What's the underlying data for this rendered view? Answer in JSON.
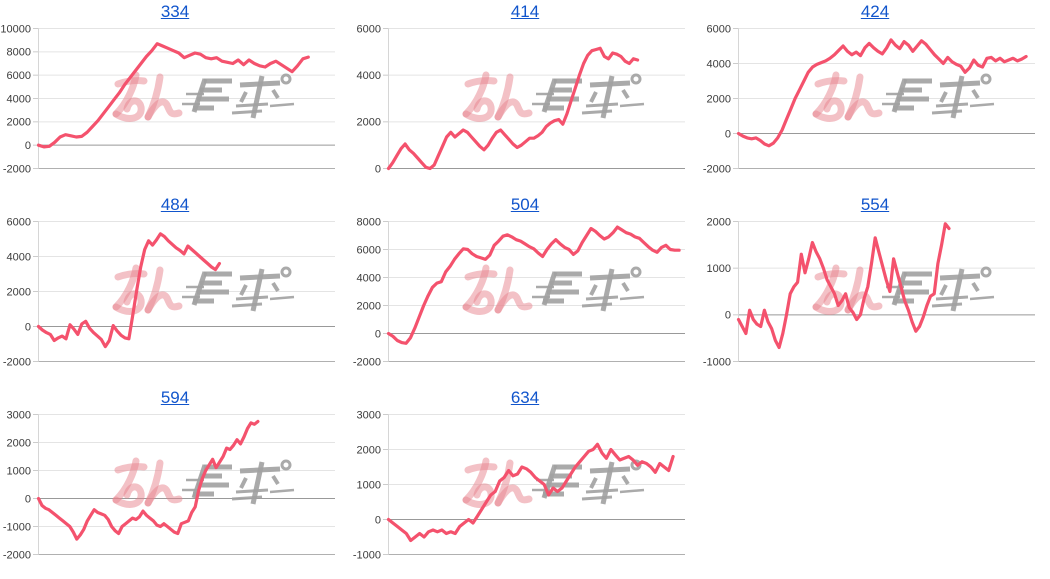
{
  "page": {
    "background": "#ffffff",
    "description_watermark": "minrepo-logo"
  },
  "style": {
    "line_color": "#f4526d",
    "grid_color": "#e4e4e4",
    "zero_line_color": "#999999",
    "baseline_color": "#b0b0b0",
    "axis_line_color": "#d6d6d6",
    "tick_stub_color": "#cccccc",
    "tick_label_color": "#3c3c3c",
    "title_link_color": "#1155cc",
    "watermark_pink": "#e8838e",
    "watermark_gray": "#a1a1a1"
  },
  "chart_data": [
    {
      "type": "line",
      "title": "334",
      "ylim": [
        -2000,
        10000
      ],
      "yticks": [
        10000,
        8000,
        6000,
        4000,
        2000,
        0,
        -2000
      ],
      "x_end": 0.91,
      "grid": true,
      "legend": "none",
      "values": [
        0,
        -150,
        -100,
        250,
        700,
        900,
        800,
        700,
        750,
        1100,
        1600,
        2100,
        2700,
        3300,
        3900,
        4500,
        5200,
        5800,
        6400,
        7000,
        7600,
        8100,
        8700,
        8500,
        8300,
        8100,
        7900,
        7500,
        7700,
        7900,
        7800,
        7500,
        7400,
        7500,
        7200,
        7100,
        7000,
        7300,
        6900,
        7300,
        7000,
        6800,
        6700,
        7000,
        7200,
        6900,
        6600,
        6300,
        6800,
        7400,
        7550
      ]
    },
    {
      "type": "line",
      "title": "414",
      "ylim": [
        0,
        6000
      ],
      "yticks": [
        6000,
        4000,
        2000,
        0
      ],
      "x_end": 0.84,
      "grid": true,
      "legend": "none",
      "values": [
        0,
        250,
        550,
        850,
        1050,
        800,
        650,
        450,
        250,
        50,
        0,
        150,
        550,
        950,
        1350,
        1550,
        1350,
        1500,
        1650,
        1550,
        1350,
        1150,
        950,
        800,
        1000,
        1300,
        1550,
        1650,
        1450,
        1250,
        1050,
        900,
        1000,
        1150,
        1300,
        1300,
        1400,
        1550,
        1800,
        1950,
        2050,
        2100,
        1900,
        2350,
        2900,
        3450,
        4000,
        4500,
        4850,
        5050,
        5100,
        5150,
        4800,
        4700,
        4950,
        4900,
        4800,
        4600,
        4500,
        4700,
        4650
      ]
    },
    {
      "type": "line",
      "title": "424",
      "ylim": [
        -2000,
        6000
      ],
      "yticks": [
        6000,
        4000,
        2000,
        0,
        -2000
      ],
      "x_end": 0.97,
      "grid": true,
      "legend": "none",
      "values": [
        0,
        -150,
        -250,
        -300,
        -250,
        -400,
        -600,
        -700,
        -550,
        -250,
        200,
        800,
        1400,
        2000,
        2500,
        3000,
        3500,
        3800,
        3950,
        4050,
        4150,
        4300,
        4500,
        4750,
        5000,
        4700,
        4500,
        4650,
        4450,
        4900,
        5150,
        4900,
        4700,
        4550,
        4900,
        5350,
        5050,
        4850,
        5250,
        5050,
        4700,
        5000,
        5300,
        5100,
        4800,
        4500,
        4250,
        4000,
        4350,
        4100,
        3950,
        3850,
        3500,
        3750,
        4200,
        3900,
        3800,
        4300,
        4350,
        4150,
        4300,
        4100,
        4200,
        4300,
        4150,
        4250,
        4400
      ]
    },
    {
      "type": "line",
      "title": "484",
      "ylim": [
        -2000,
        6000
      ],
      "yticks": [
        6000,
        4000,
        2000,
        0,
        -2000
      ],
      "x_end": 0.61,
      "grid": true,
      "legend": "none",
      "values": [
        0,
        -200,
        -350,
        -450,
        -800,
        -650,
        -550,
        -700,
        100,
        -150,
        -450,
        150,
        300,
        -100,
        -350,
        -550,
        -750,
        -1150,
        -800,
        50,
        -250,
        -500,
        -650,
        -700,
        700,
        2100,
        3400,
        4400,
        4900,
        4650,
        4950,
        5300,
        5150,
        4900,
        4700,
        4500,
        4350,
        4150,
        4600,
        4400,
        4200,
        4000,
        3800,
        3600,
        3400,
        3250,
        3600
      ]
    },
    {
      "type": "line",
      "title": "504",
      "ylim": [
        -2000,
        8000
      ],
      "yticks": [
        8000,
        6000,
        4000,
        2000,
        0,
        -2000
      ],
      "x_end": 0.98,
      "grid": true,
      "legend": "none",
      "values": [
        0,
        -200,
        -500,
        -650,
        -700,
        -300,
        400,
        1200,
        2000,
        2700,
        3300,
        3600,
        3700,
        4400,
        4800,
        5300,
        5700,
        6050,
        6000,
        5700,
        5500,
        5400,
        5300,
        5600,
        6300,
        6600,
        6950,
        7050,
        6900,
        6700,
        6600,
        6400,
        6200,
        6050,
        5750,
        5500,
        6000,
        6400,
        6700,
        6400,
        6150,
        6000,
        5650,
        5900,
        6500,
        7000,
        7500,
        7300,
        7000,
        6750,
        6900,
        7200,
        7600,
        7400,
        7200,
        7100,
        6900,
        6800,
        6500,
        6200,
        5950,
        5800,
        6150,
        6300,
        6000,
        5950,
        5950
      ]
    },
    {
      "type": "line",
      "title": "554",
      "ylim": [
        -1000,
        2000
      ],
      "yticks": [
        2000,
        1000,
        0,
        -1000
      ],
      "x_end": 0.71,
      "grid": true,
      "legend": "none",
      "values": [
        -100,
        -250,
        -400,
        100,
        -100,
        -200,
        -250,
        100,
        -150,
        -300,
        -550,
        -700,
        -400,
        0,
        450,
        600,
        700,
        1300,
        900,
        1200,
        1550,
        1350,
        1200,
        1000,
        750,
        600,
        450,
        200,
        300,
        450,
        150,
        50,
        -100,
        0,
        350,
        600,
        1100,
        1650,
        1350,
        1050,
        750,
        500,
        1200,
        900,
        600,
        300,
        100,
        -150,
        -350,
        -250,
        -50,
        200,
        400,
        450,
        1100,
        1500,
        1950,
        1850
      ]
    },
    {
      "type": "line",
      "title": "594",
      "ylim": [
        -2000,
        3000
      ],
      "yticks": [
        3000,
        2000,
        1000,
        0,
        -1000,
        -2000
      ],
      "x_end": 0.74,
      "grid": true,
      "legend": "none",
      "values": [
        0,
        -250,
        -350,
        -400,
        -500,
        -600,
        -700,
        -800,
        -900,
        -1000,
        -1200,
        -1450,
        -1300,
        -1100,
        -800,
        -600,
        -400,
        -500,
        -550,
        -600,
        -750,
        -1000,
        -1150,
        -1250,
        -1000,
        -900,
        -800,
        -700,
        -750,
        -650,
        -450,
        -600,
        -700,
        -800,
        -950,
        -1000,
        -900,
        -1000,
        -1100,
        -1200,
        -1250,
        -900,
        -850,
        -800,
        -500,
        -300,
        300,
        700,
        1000,
        1200,
        1400,
        1100,
        1300,
        1500,
        1800,
        1750,
        1900,
        2100,
        1950,
        2200,
        2500,
        2700,
        2650,
        2750
      ]
    },
    {
      "type": "line",
      "title": "634",
      "ylim": [
        -1000,
        3000
      ],
      "yticks": [
        3000,
        2000,
        1000,
        0,
        -1000
      ],
      "x_end": 0.96,
      "grid": true,
      "legend": "none",
      "values": [
        0,
        -100,
        -200,
        -300,
        -400,
        -600,
        -500,
        -400,
        -500,
        -350,
        -300,
        -350,
        -300,
        -400,
        -350,
        -400,
        -200,
        -100,
        0,
        -100,
        100,
        300,
        500,
        700,
        800,
        1100,
        1200,
        1400,
        1250,
        1300,
        1500,
        1450,
        1350,
        1200,
        1100,
        1000,
        700,
        900,
        800,
        900,
        1100,
        1300,
        1500,
        1650,
        1800,
        1950,
        2000,
        2150,
        1900,
        1750,
        2000,
        1850,
        1700,
        1750,
        1800,
        1700,
        1550,
        1650,
        1600,
        1500,
        1350,
        1600,
        1500,
        1400,
        1800
      ]
    }
  ]
}
